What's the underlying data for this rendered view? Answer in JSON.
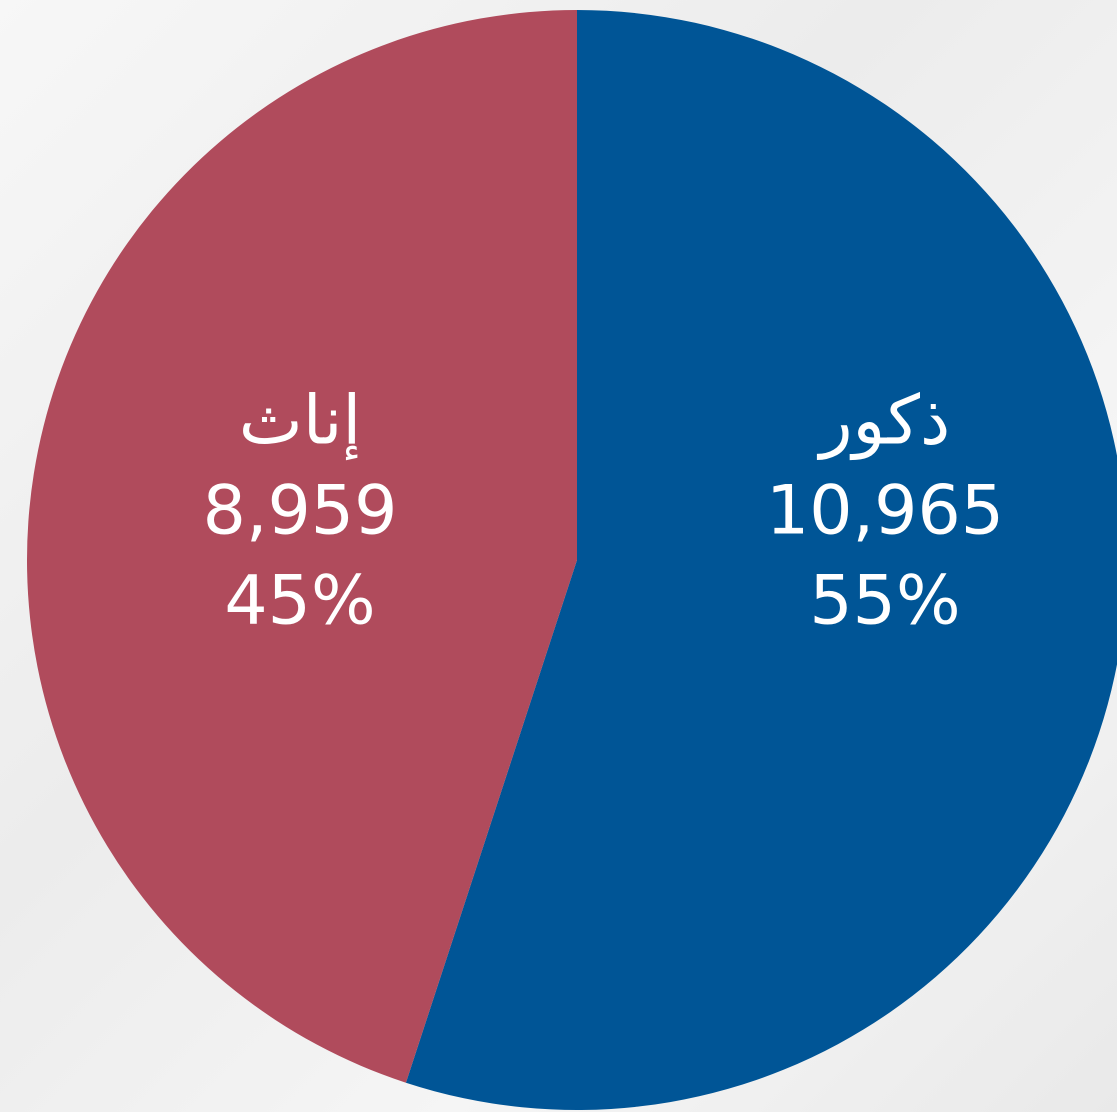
{
  "chart_data": {
    "type": "pie",
    "categories": [
      "ذكور",
      "إناث"
    ],
    "values": [
      10965,
      8959
    ],
    "value_labels": [
      "10,965",
      "8,959"
    ],
    "percent_labels": [
      "55%",
      "45%"
    ],
    "colors": [
      "#005596",
      "#b04b5c"
    ]
  }
}
